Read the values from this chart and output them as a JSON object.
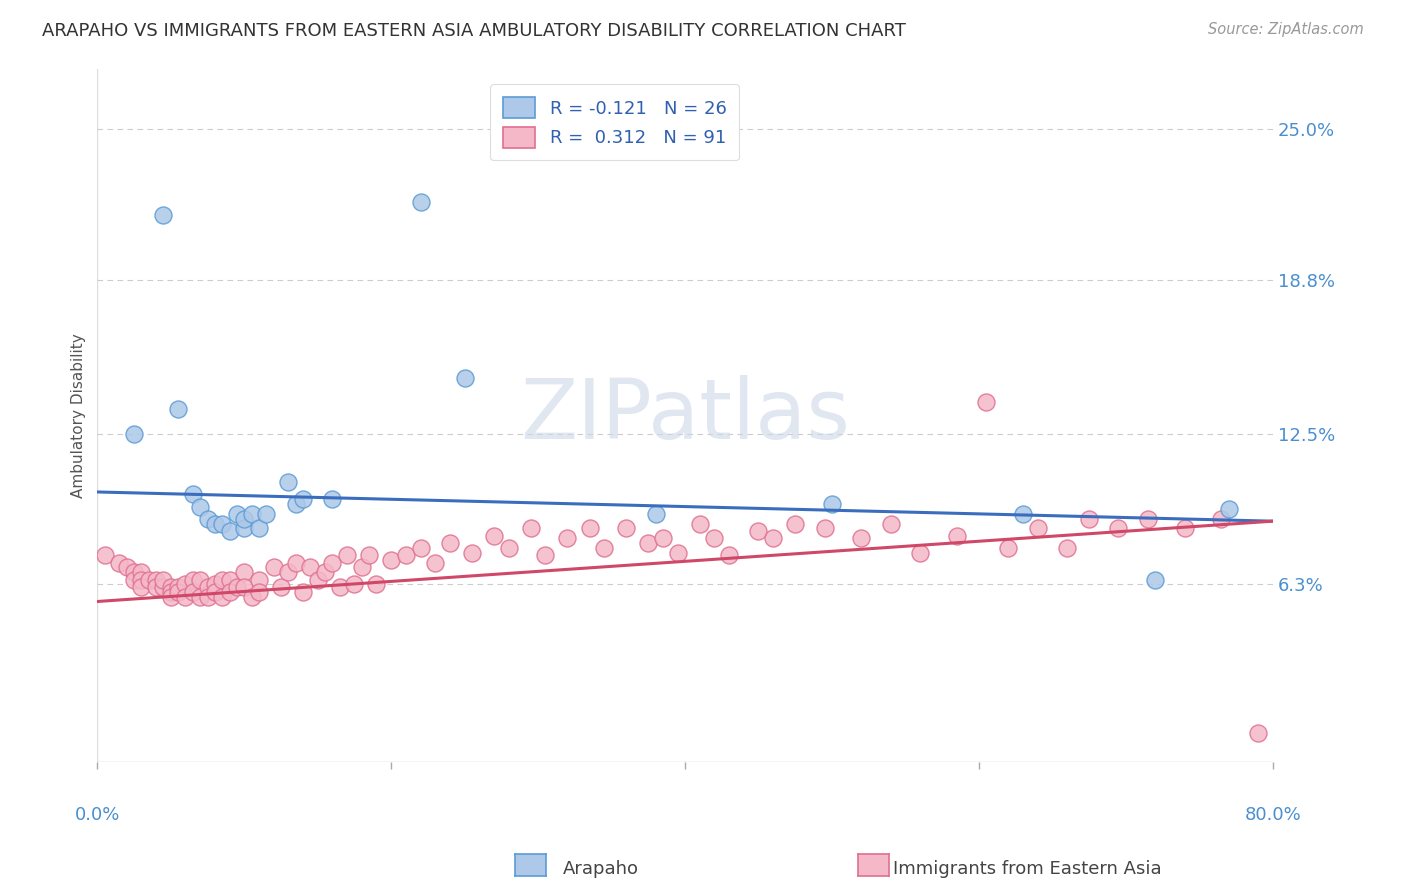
{
  "title": "ARAPAHO VS IMMIGRANTS FROM EASTERN ASIA AMBULATORY DISABILITY CORRELATION CHART",
  "source": "Source: ZipAtlas.com",
  "ylabel": "Ambulatory Disability",
  "right_yticks": [
    "25.0%",
    "18.8%",
    "12.5%",
    "6.3%"
  ],
  "right_ytick_vals": [
    0.25,
    0.188,
    0.125,
    0.063
  ],
  "xlim": [
    0.0,
    0.8
  ],
  "ylim": [
    -0.01,
    0.275
  ],
  "legend1_label": "R = -0.121   N = 26",
  "legend2_label": "R =  0.312   N = 91",
  "arapaho_fill_color": "#adc8e8",
  "arapaho_edge_color": "#5b9bd5",
  "immigrants_fill_color": "#f4b8c8",
  "immigrants_edge_color": "#e07090",
  "arapaho_line_color": "#3b6dbf",
  "immigrants_line_color": "#d04868",
  "watermark_color": "#ccd8e8",
  "arapaho_x": [
    0.025,
    0.045,
    0.055,
    0.065,
    0.07,
    0.075,
    0.08,
    0.085,
    0.09,
    0.095,
    0.1,
    0.1,
    0.105,
    0.11,
    0.115,
    0.13,
    0.135,
    0.14,
    0.16,
    0.22,
    0.25,
    0.38,
    0.5,
    0.63,
    0.72,
    0.77
  ],
  "arapaho_y": [
    0.125,
    0.215,
    0.135,
    0.1,
    0.095,
    0.09,
    0.088,
    0.088,
    0.085,
    0.092,
    0.086,
    0.09,
    0.092,
    0.086,
    0.092,
    0.105,
    0.096,
    0.098,
    0.098,
    0.22,
    0.148,
    0.092,
    0.096,
    0.092,
    0.065,
    0.094
  ],
  "immigrants_x": [
    0.005,
    0.015,
    0.02,
    0.025,
    0.025,
    0.03,
    0.03,
    0.03,
    0.035,
    0.04,
    0.04,
    0.045,
    0.045,
    0.05,
    0.05,
    0.05,
    0.055,
    0.055,
    0.06,
    0.06,
    0.065,
    0.065,
    0.07,
    0.07,
    0.075,
    0.075,
    0.08,
    0.08,
    0.085,
    0.085,
    0.09,
    0.09,
    0.095,
    0.1,
    0.1,
    0.105,
    0.11,
    0.11,
    0.12,
    0.125,
    0.13,
    0.135,
    0.14,
    0.145,
    0.15,
    0.155,
    0.16,
    0.165,
    0.17,
    0.175,
    0.18,
    0.185,
    0.19,
    0.2,
    0.21,
    0.22,
    0.23,
    0.24,
    0.255,
    0.27,
    0.28,
    0.295,
    0.305,
    0.32,
    0.335,
    0.345,
    0.36,
    0.375,
    0.385,
    0.395,
    0.41,
    0.42,
    0.43,
    0.45,
    0.46,
    0.475,
    0.495,
    0.52,
    0.54,
    0.56,
    0.585,
    0.605,
    0.62,
    0.64,
    0.66,
    0.675,
    0.695,
    0.715,
    0.74,
    0.765,
    0.79
  ],
  "immigrants_y": [
    0.075,
    0.072,
    0.07,
    0.068,
    0.065,
    0.068,
    0.065,
    0.062,
    0.065,
    0.065,
    0.062,
    0.062,
    0.065,
    0.062,
    0.06,
    0.058,
    0.062,
    0.06,
    0.063,
    0.058,
    0.065,
    0.06,
    0.065,
    0.058,
    0.062,
    0.058,
    0.063,
    0.06,
    0.065,
    0.058,
    0.065,
    0.06,
    0.062,
    0.068,
    0.062,
    0.058,
    0.065,
    0.06,
    0.07,
    0.062,
    0.068,
    0.072,
    0.06,
    0.07,
    0.065,
    0.068,
    0.072,
    0.062,
    0.075,
    0.063,
    0.07,
    0.075,
    0.063,
    0.073,
    0.075,
    0.078,
    0.072,
    0.08,
    0.076,
    0.083,
    0.078,
    0.086,
    0.075,
    0.082,
    0.086,
    0.078,
    0.086,
    0.08,
    0.082,
    0.076,
    0.088,
    0.082,
    0.075,
    0.085,
    0.082,
    0.088,
    0.086,
    0.082,
    0.088,
    0.076,
    0.083,
    0.138,
    0.078,
    0.086,
    0.078,
    0.09,
    0.086,
    0.09,
    0.086,
    0.09,
    0.002
  ],
  "blue_line_x0": 0.0,
  "blue_line_y0": 0.101,
  "blue_line_x1": 0.8,
  "blue_line_y1": 0.089,
  "pink_line_x0": 0.0,
  "pink_line_y0": 0.056,
  "pink_line_x1": 0.8,
  "pink_line_y1": 0.089
}
